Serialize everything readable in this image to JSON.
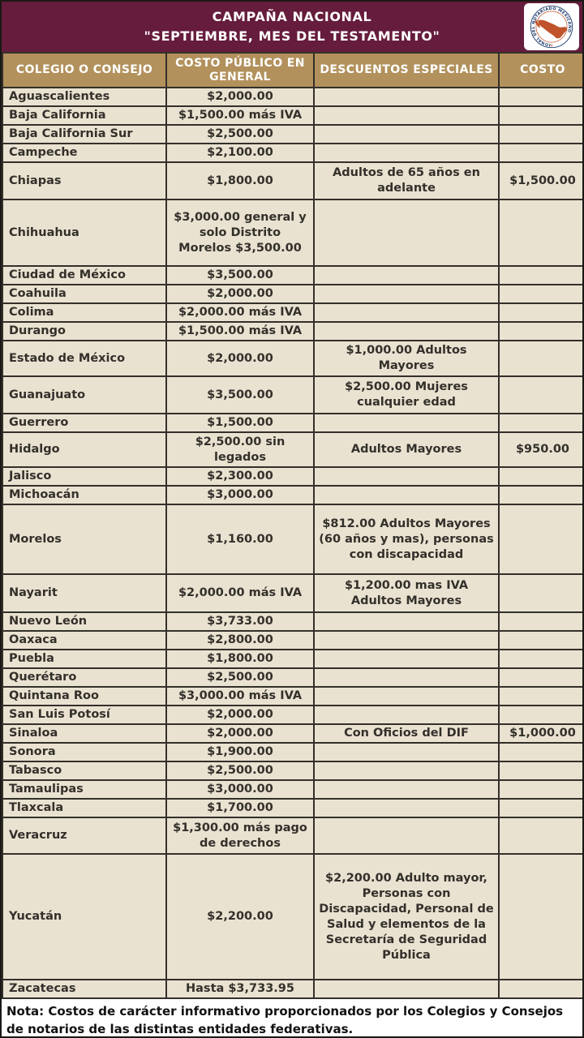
{
  "header": {
    "title_line1": "CAMPAÑA NACIONAL",
    "title_line2": "\"SEPTIEMBRE, MES DEL TESTAMENTO\""
  },
  "logo": {
    "seal_text": "COLEGIO NACIONAL DEL NOTARIADO MEXICANO"
  },
  "columns": [
    "COLEGIO O CONSEJO",
    "COSTO PÚBLICO EN GENERAL",
    "DESCUENTOS ESPECIALES",
    "COSTO"
  ],
  "rows": [
    {
      "estado": "Aguascalientes",
      "costo_publico": "$2,000.00",
      "descuentos": "",
      "costo": ""
    },
    {
      "estado": "Baja California",
      "costo_publico": "$1,500.00 más IVA",
      "descuentos": "",
      "costo": ""
    },
    {
      "estado": "Baja California Sur",
      "costo_publico": "$2,500.00",
      "descuentos": "",
      "costo": ""
    },
    {
      "estado": "Campeche",
      "costo_publico": "$2,100.00",
      "descuentos": "",
      "costo": ""
    },
    {
      "estado": "Chiapas",
      "costo_publico": "$1,800.00",
      "descuentos": "Adultos de 65 años en adelante",
      "costo": "$1,500.00"
    },
    {
      "estado": "Chihuahua",
      "costo_publico": "$3,000.00 general y solo Distrito Morelos $3,500.00",
      "descuentos": "",
      "costo": ""
    },
    {
      "estado": "Ciudad de México",
      "costo_publico": "$3,500.00",
      "descuentos": "",
      "costo": ""
    },
    {
      "estado": "Coahuila",
      "costo_publico": "$2,000.00",
      "descuentos": "",
      "costo": ""
    },
    {
      "estado": "Colima",
      "costo_publico": "$2,000.00 más IVA",
      "descuentos": "",
      "costo": ""
    },
    {
      "estado": "Durango",
      "costo_publico": "$1,500.00 más IVA",
      "descuentos": "",
      "costo": ""
    },
    {
      "estado": "Estado de México",
      "costo_publico": "$2,000.00",
      "descuentos": "$1,000.00 Adultos Mayores",
      "costo": ""
    },
    {
      "estado": "Guanajuato",
      "costo_publico": "$3,500.00",
      "descuentos": "$2,500.00 Mujeres cualquier edad",
      "costo": ""
    },
    {
      "estado": "Guerrero",
      "costo_publico": "$1,500.00",
      "descuentos": "",
      "costo": ""
    },
    {
      "estado": "Hidalgo",
      "costo_publico": "$2,500.00 sin legados",
      "descuentos": "Adultos Mayores",
      "costo": "$950.00"
    },
    {
      "estado": "Jalisco",
      "costo_publico": "$2,300.00",
      "descuentos": "",
      "costo": ""
    },
    {
      "estado": "Michoacán",
      "costo_publico": "$3,000.00",
      "descuentos": "",
      "costo": ""
    },
    {
      "estado": "Morelos",
      "costo_publico": "$1,160.00",
      "descuentos": "$812.00 Adultos Mayores (60 años y mas), personas con discapacidad",
      "costo": ""
    },
    {
      "estado": "Nayarit",
      "costo_publico": "$2,000.00 más IVA",
      "descuentos": "$1,200.00 mas IVA Adultos Mayores",
      "costo": ""
    },
    {
      "estado": "Nuevo León",
      "costo_publico": "$3,733.00",
      "descuentos": "",
      "costo": ""
    },
    {
      "estado": "Oaxaca",
      "costo_publico": "$2,800.00",
      "descuentos": "",
      "costo": ""
    },
    {
      "estado": "Puebla",
      "costo_publico": "$1,800.00",
      "descuentos": "",
      "costo": ""
    },
    {
      "estado": "Querétaro",
      "costo_publico": "$2,500.00",
      "descuentos": "",
      "costo": ""
    },
    {
      "estado": "Quintana Roo",
      "costo_publico": "$3,000.00 más IVA",
      "descuentos": "",
      "costo": ""
    },
    {
      "estado": "San Luis Potosí",
      "costo_publico": "$2,000.00",
      "descuentos": "",
      "costo": ""
    },
    {
      "estado": "Sinaloa",
      "costo_publico": "$2,000.00",
      "descuentos": "Con Oficios del DIF",
      "costo": "$1,000.00"
    },
    {
      "estado": "Sonora",
      "costo_publico": "$1,900.00",
      "descuentos": "",
      "costo": ""
    },
    {
      "estado": "Tabasco",
      "costo_publico": "$2,500.00",
      "descuentos": "",
      "costo": ""
    },
    {
      "estado": "Tamaulipas",
      "costo_publico": "$3,000.00",
      "descuentos": "",
      "costo": ""
    },
    {
      "estado": "Tlaxcala",
      "costo_publico": "$1,700.00",
      "descuentos": "",
      "costo": ""
    },
    {
      "estado": "Veracruz",
      "costo_publico": "$1,300.00 más pago de derechos",
      "descuentos": "",
      "costo": ""
    },
    {
      "estado": "Yucatán",
      "costo_publico": "$2,200.00",
      "descuentos": "$2,200.00 Adulto mayor, Personas con Discapacidad, Personal de Salud y elementos de la Secretaría de Seguridad Pública",
      "costo": ""
    },
    {
      "estado": "Zacatecas",
      "costo_publico": "Hasta $3,733.95",
      "descuentos": "",
      "costo": ""
    }
  ],
  "note": {
    "text": "Nota: Costos de carácter informativo proporcionados por los Colegios y Consejos de notarios de las distintas entidades federativas."
  },
  "colors": {
    "banner_maroon": "#661C3C",
    "header_tan": "#B2915C",
    "row_beige": "#EAE2D1",
    "border_dark": "#33302B",
    "logo_navy": "#1B3A6B",
    "logo_orange": "#C0532B"
  }
}
